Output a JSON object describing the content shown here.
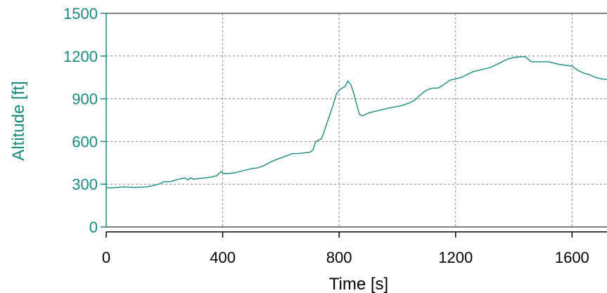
{
  "chart_data": {
    "type": "line",
    "title": "",
    "xlabel": "Time [s]",
    "ylabel": "Altitude [ft]",
    "xlim": [
      0,
      1720
    ],
    "ylim": [
      0,
      1500
    ],
    "xticks": [
      0,
      400,
      800,
      1200,
      1600
    ],
    "yticks": [
      0,
      300,
      600,
      900,
      1200,
      1500
    ],
    "grid": true,
    "legend": "none",
    "axis_color": "#1a8a80",
    "line_color": "#1a8a80",
    "series": [
      {
        "x": [
          0,
          20,
          40,
          60,
          80,
          100,
          120,
          140,
          160,
          180,
          200,
          220,
          240,
          260,
          270,
          280,
          290,
          300,
          320,
          340,
          360,
          380,
          395,
          400,
          405,
          420,
          440,
          460,
          480,
          500,
          520,
          540,
          560,
          580,
          600,
          620,
          640,
          660,
          680,
          700,
          710,
          720,
          730,
          740,
          750,
          760,
          770,
          780,
          790,
          800,
          810,
          820,
          830,
          840,
          850,
          860,
          870,
          880,
          890,
          900,
          920,
          940,
          960,
          980,
          1000,
          1020,
          1040,
          1060,
          1080,
          1100,
          1120,
          1140,
          1160,
          1180,
          1200,
          1220,
          1240,
          1260,
          1280,
          1300,
          1320,
          1340,
          1360,
          1380,
          1400,
          1420,
          1440,
          1460,
          1480,
          1500,
          1520,
          1540,
          1560,
          1580,
          1600,
          1620,
          1640,
          1660,
          1680,
          1700,
          1720
        ],
        "y": [
          275,
          275,
          278,
          282,
          280,
          278,
          280,
          282,
          290,
          300,
          318,
          318,
          330,
          340,
          345,
          330,
          345,
          335,
          340,
          345,
          350,
          360,
          390,
          380,
          375,
          375,
          380,
          390,
          400,
          410,
          415,
          430,
          450,
          470,
          485,
          500,
          515,
          515,
          520,
          525,
          540,
          600,
          610,
          620,
          680,
          740,
          800,
          860,
          930,
          960,
          975,
          985,
          1025,
          1000,
          940,
          860,
          790,
          780,
          790,
          800,
          810,
          820,
          830,
          840,
          845,
          855,
          870,
          890,
          930,
          960,
          975,
          975,
          1000,
          1030,
          1040,
          1050,
          1070,
          1090,
          1100,
          1110,
          1120,
          1140,
          1160,
          1180,
          1190,
          1195,
          1195,
          1160,
          1160,
          1160,
          1160,
          1150,
          1140,
          1135,
          1130,
          1100,
          1080,
          1070,
          1050,
          1040,
          1035
        ]
      }
    ]
  }
}
